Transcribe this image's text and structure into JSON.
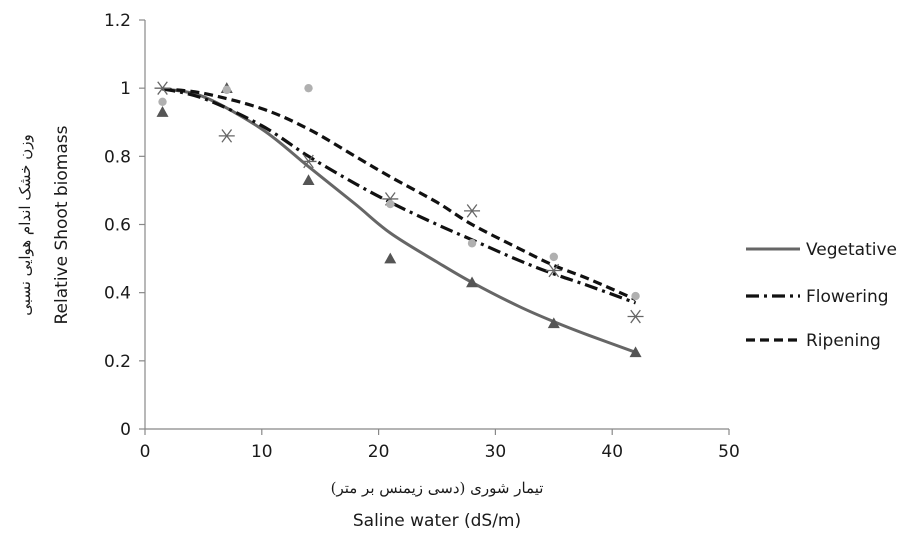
{
  "chart_data": {
    "type": "scatter",
    "xlabel": "Saline water (dS/m)",
    "xlabel_fa": "تیمار شوری (دسی زیمنس بر متر)",
    "ylabel": "Relative Shoot biomass",
    "ylabel_fa": "وزن خشک اندام هوایی نسبی",
    "xlim": [
      0,
      50
    ],
    "ylim": [
      0,
      1.2
    ],
    "x_ticks": [
      "0",
      "10",
      "20",
      "30",
      "40",
      "50"
    ],
    "y_ticks": [
      "0",
      "0.2",
      "0.4",
      "0.6",
      "0.8",
      "1",
      "1.2"
    ],
    "grid": false,
    "legend_position": "right",
    "series": [
      {
        "name": "Vegetative",
        "marker": "triangle",
        "marker_color": "#555555",
        "line_style": "solid",
        "line_color": "#666666",
        "points": [
          [
            1.5,
            0.93
          ],
          [
            7,
            1.0
          ],
          [
            14,
            0.73
          ],
          [
            21,
            0.5
          ],
          [
            28,
            0.43
          ],
          [
            35,
            0.31
          ],
          [
            42,
            0.225
          ]
        ],
        "fit": [
          [
            1.5,
            0.998
          ],
          [
            5,
            0.975
          ],
          [
            10,
            0.88
          ],
          [
            14,
            0.77
          ],
          [
            18,
            0.66
          ],
          [
            21,
            0.575
          ],
          [
            25,
            0.49
          ],
          [
            28,
            0.43
          ],
          [
            32,
            0.36
          ],
          [
            35,
            0.315
          ],
          [
            38,
            0.275
          ],
          [
            42,
            0.225
          ]
        ]
      },
      {
        "name": "Flowering",
        "marker": "asterisk",
        "marker_color": "#666666",
        "line_style": "dash-dot",
        "line_color": "#111111",
        "points": [
          [
            1.5,
            1.0
          ],
          [
            7,
            0.86
          ],
          [
            14,
            0.785
          ],
          [
            21,
            0.675
          ],
          [
            28,
            0.64
          ],
          [
            35,
            0.465
          ],
          [
            42,
            0.33
          ]
        ],
        "fit": [
          [
            1.5,
            0.998
          ],
          [
            5,
            0.97
          ],
          [
            10,
            0.89
          ],
          [
            14,
            0.8
          ],
          [
            18,
            0.72
          ],
          [
            21,
            0.665
          ],
          [
            25,
            0.6
          ],
          [
            28,
            0.555
          ],
          [
            32,
            0.495
          ],
          [
            35,
            0.455
          ],
          [
            38,
            0.42
          ],
          [
            42,
            0.37
          ]
        ]
      },
      {
        "name": "Ripening",
        "marker": "circle",
        "marker_color": "#b0b0b0",
        "line_style": "dashed",
        "line_color": "#111111",
        "points": [
          [
            1.5,
            0.96
          ],
          [
            7,
            0.995
          ],
          [
            14,
            1.0
          ],
          [
            21,
            0.66
          ],
          [
            28,
            0.545
          ],
          [
            35,
            0.505
          ],
          [
            42,
            0.39
          ]
        ],
        "fit": [
          [
            1.5,
            0.998
          ],
          [
            5,
            0.985
          ],
          [
            10,
            0.94
          ],
          [
            14,
            0.88
          ],
          [
            18,
            0.8
          ],
          [
            21,
            0.74
          ],
          [
            25,
            0.665
          ],
          [
            28,
            0.6
          ],
          [
            32,
            0.53
          ],
          [
            35,
            0.48
          ],
          [
            38,
            0.44
          ],
          [
            42,
            0.38
          ]
        ]
      }
    ]
  }
}
